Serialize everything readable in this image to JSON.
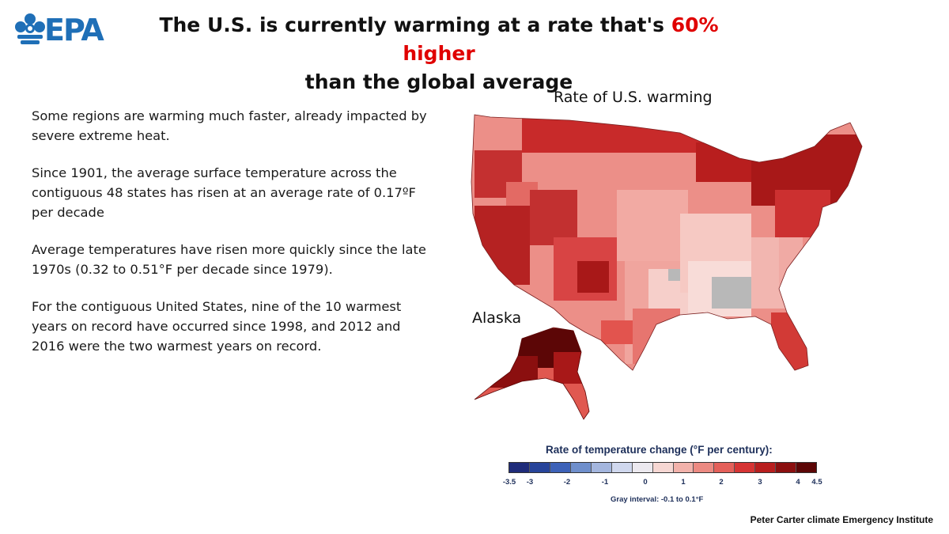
{
  "logo": {
    "text": "EPA"
  },
  "headline": {
    "part1": "The U.S. is currently warming at a rate that's ",
    "highlight": "60% higher",
    "part2": "than the global average",
    "highlight_color": "#e00000"
  },
  "bullets": [
    "Some regions are warming much faster, already  impacted by severe extreme heat.",
    "Since 1901, the average surface temperature across the contiguous 48 states has risen at an average rate of 0.17ºF per decade",
    "Average temperatures have risen more quickly since the late 1970s (0.32 to 0.51°F per decade since 1979).",
    "For the contiguous United States, nine of the 10 warmest years on record have occurred since 1998, and 2012 and 2016 were the two warmest years on record."
  ],
  "map": {
    "title": "Rate of U.S. warming",
    "alaska_label": "Alaska"
  },
  "legend": {
    "title": "Rate of temperature change (°F per century):",
    "swatch_colors": [
      "#1f2c7a",
      "#27449a",
      "#3d62b8",
      "#6f8fcc",
      "#a4b6de",
      "#d0d8ee",
      "#ece9ef",
      "#f6d7d3",
      "#f2b2ab",
      "#ec8a82",
      "#e4605a",
      "#d63434",
      "#b81e1e",
      "#8b0f0f",
      "#5c0606"
    ],
    "ticks": [
      "-3.5",
      "-3",
      "-2",
      "-1",
      "0",
      "1",
      "2",
      "3",
      "4",
      "4.5"
    ],
    "gray_note": "Gray interval: -0.1 to 0.1°F"
  },
  "credit": "Peter Carter climate Emergency Institute"
}
